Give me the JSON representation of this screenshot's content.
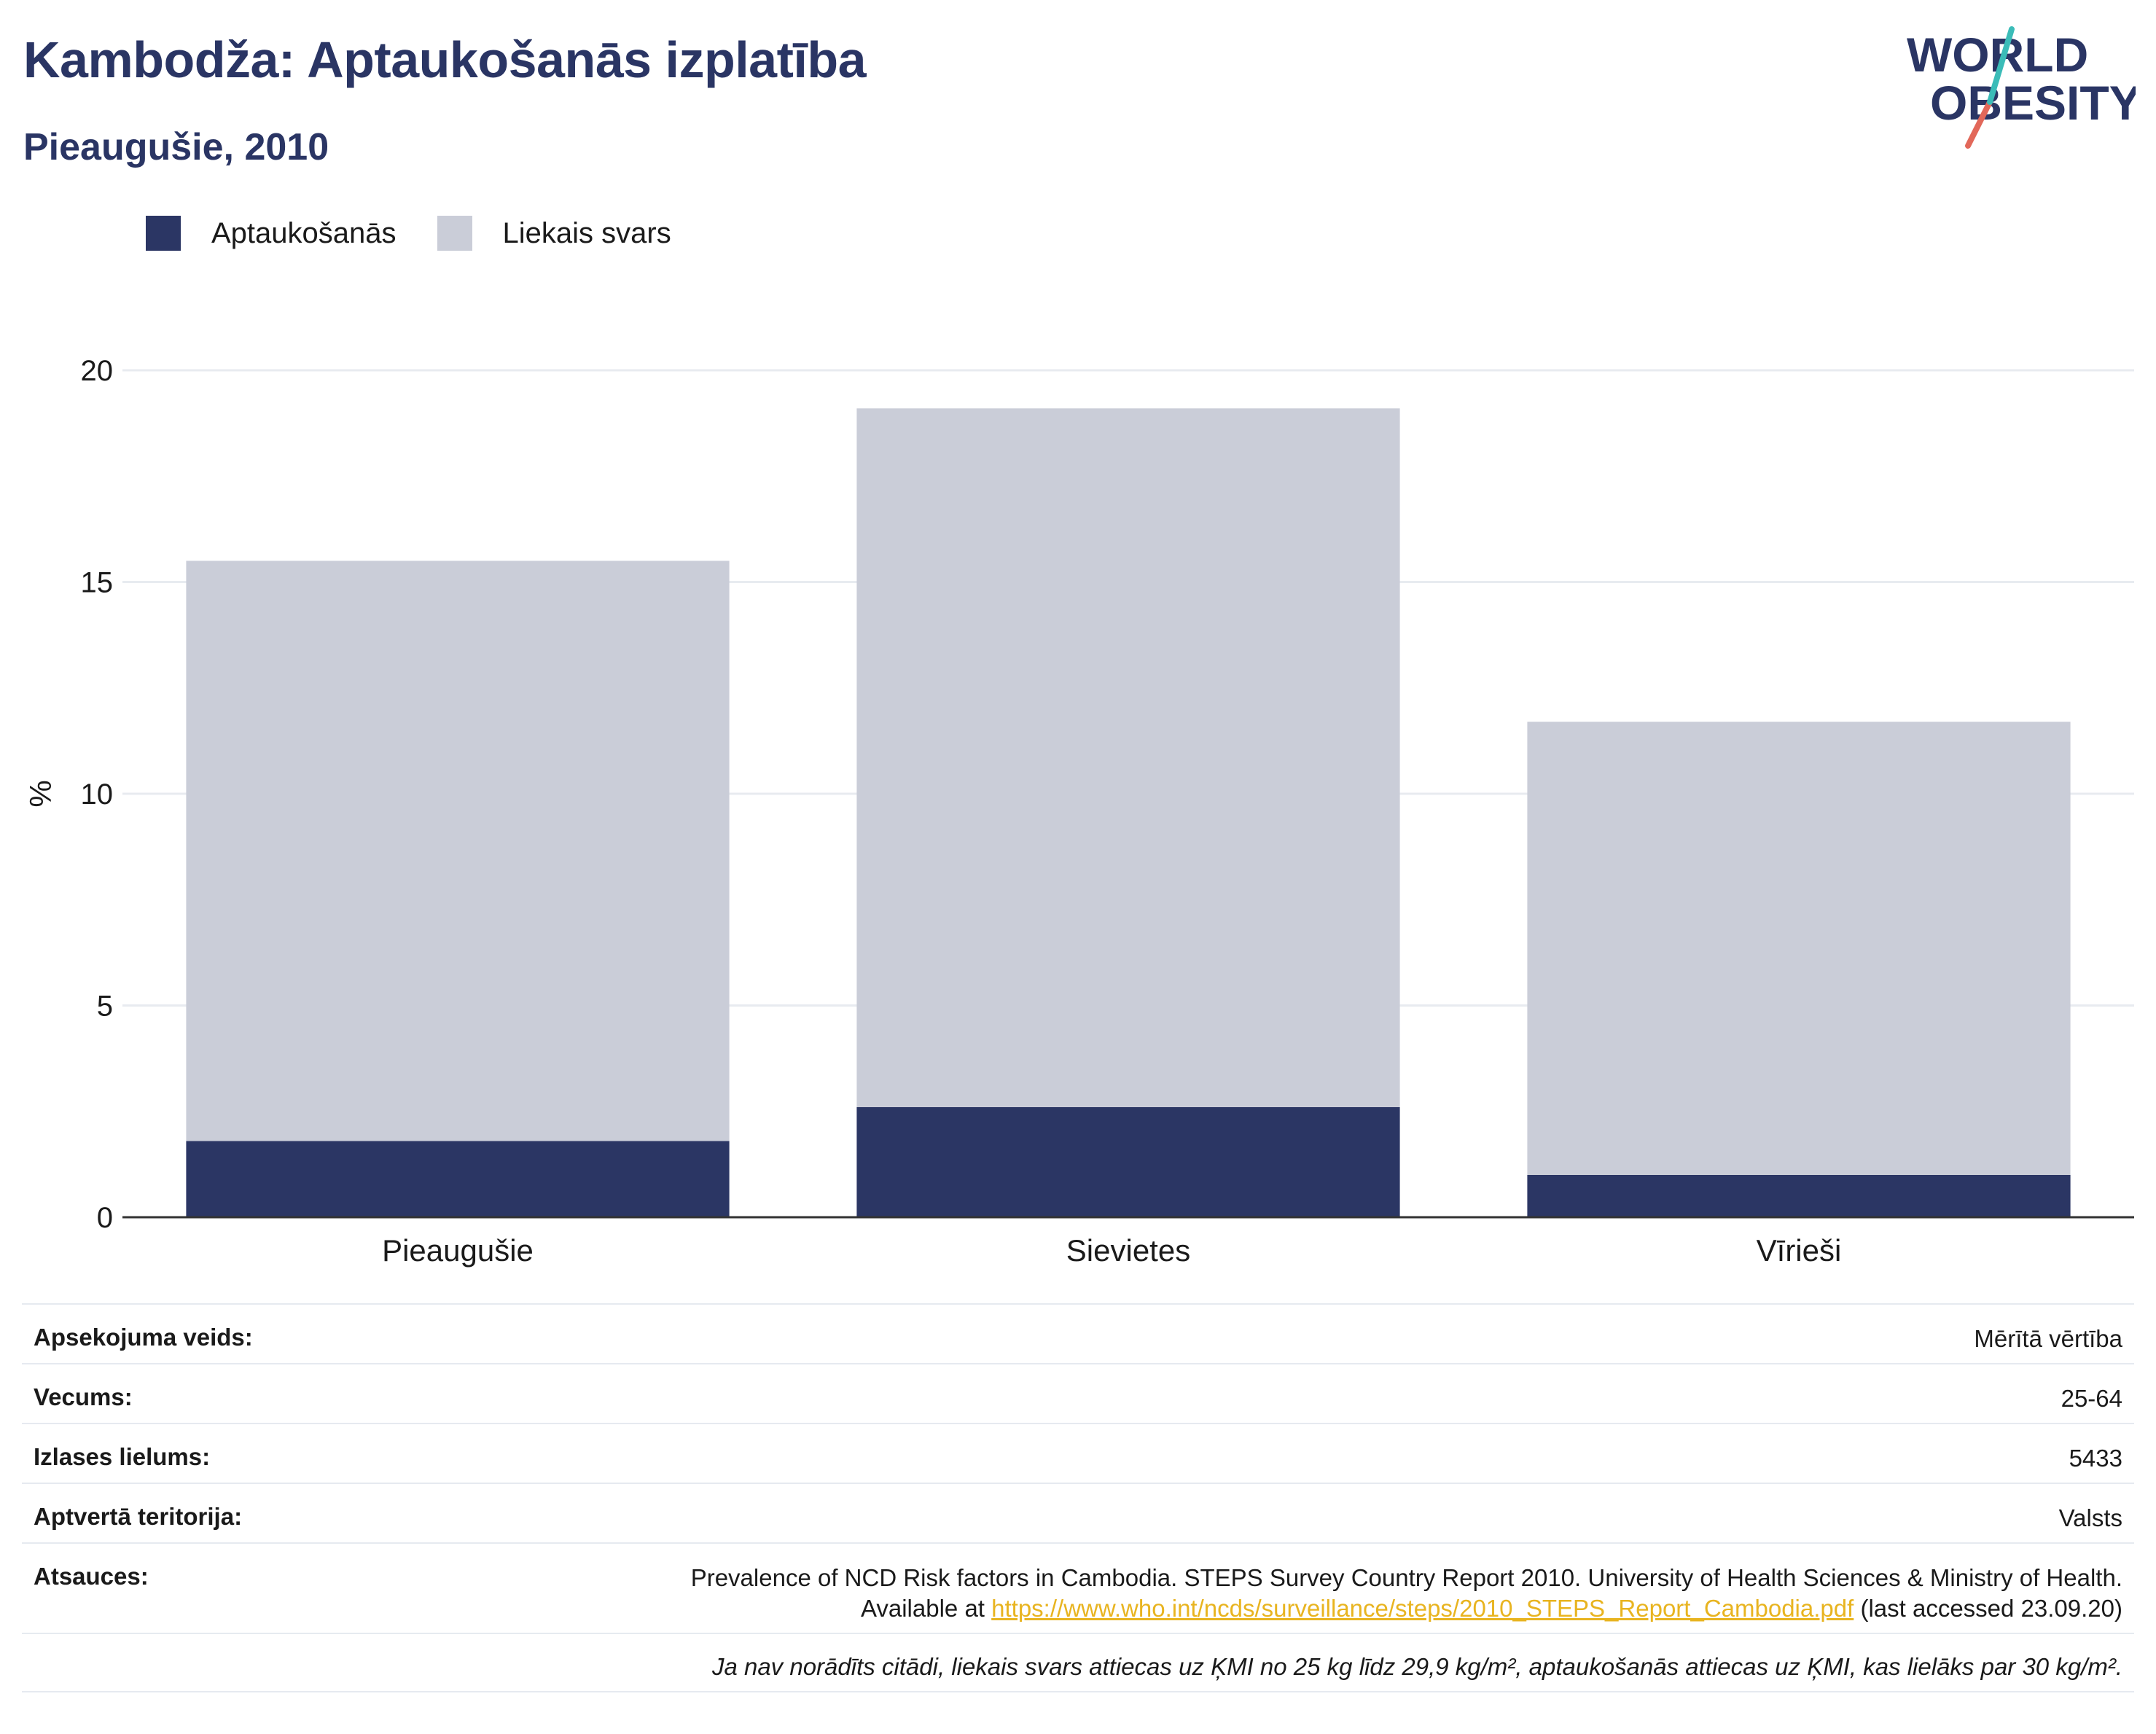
{
  "header": {
    "title": "Kambodža: Aptaukošanās izplatība",
    "subtitle": "Pieaugušie, 2010"
  },
  "logo": {
    "line1": "WORLD",
    "line2": "OBESITY",
    "icon": "world-obesity-logo"
  },
  "legend": [
    {
      "label": "Aptaukošanās",
      "color": "#2b3664"
    },
    {
      "label": "Liekais svars",
      "color": "#cacdd8"
    }
  ],
  "chart_data": {
    "type": "bar",
    "stacked": true,
    "categories": [
      "Pieaugušie",
      "Sievietes",
      "Vīrieši"
    ],
    "series": [
      {
        "name": "Aptaukošanās",
        "color": "#2b3664",
        "values": [
          1.8,
          2.6,
          1.0
        ]
      },
      {
        "name": "Liekais svars",
        "color": "#cacdd8",
        "values": [
          13.7,
          16.5,
          10.7
        ]
      }
    ],
    "ylabel": "%",
    "ylim": [
      0,
      20
    ],
    "yticks": [
      0,
      5,
      10,
      15,
      20
    ],
    "grid": true,
    "legend_position": "top-left"
  },
  "meta": {
    "rows": [
      {
        "key": "Apsekojuma veids:",
        "value": "Mērītā vērtība"
      },
      {
        "key": "Vecums:",
        "value": "25-64"
      },
      {
        "key": "Izlases lielums:",
        "value": "5433"
      },
      {
        "key": "Aptvertā teritorija:",
        "value": "Valsts"
      }
    ],
    "source_key": "Atsauces:",
    "source_line1": "Prevalence of NCD Risk factors in Cambodia. STEPS Survey Country Report 2010. University of Health Sciences & Ministry of Health.",
    "source_prefix": "Available at ",
    "source_url": "https://www.who.int/ncds/surveillance/steps/2010_STEPS_Report_Cambodia.pdf",
    "source_suffix": " (last accessed 23.09.20)",
    "note": "Ja nav norādīts citādi, liekais svars attiecas uz ĶMI no 25 kg līdz 29,9 kg/m², aptaukošanās attiecas uz ĶMI, kas lielāks par 30 kg/m²."
  }
}
